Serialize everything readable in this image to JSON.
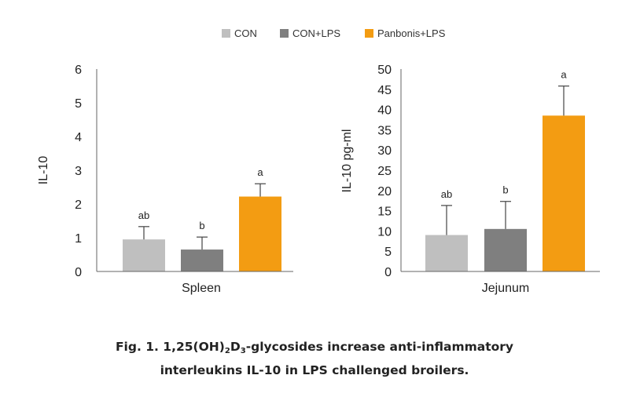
{
  "legend": [
    {
      "label": "CON",
      "color": "#bfbfbf"
    },
    {
      "label": "CON+LPS",
      "color": "#7f7f7f"
    },
    {
      "label": "Panbonis+LPS",
      "color": "#f39c12"
    }
  ],
  "chart_data": [
    {
      "type": "bar",
      "title": "",
      "xlabel": "Spleen",
      "ylabel": "IL-10",
      "ylim": [
        0,
        6
      ],
      "yticks": [
        "0",
        "1",
        "2",
        "3",
        "4",
        "5",
        "6"
      ],
      "categories": [
        "CON",
        "CON+LPS",
        "Panbonis+LPS"
      ],
      "values": [
        0.95,
        0.65,
        2.22
      ],
      "errors": [
        0.38,
        0.37,
        0.38
      ],
      "labels": [
        "ab",
        "b",
        "a"
      ]
    },
    {
      "type": "bar",
      "title": "",
      "xlabel": "Jejunum",
      "ylabel": "IL-10 pg-ml",
      "ylim": [
        0,
        50
      ],
      "yticks": [
        "0",
        "5",
        "10",
        "15",
        "20",
        "25",
        "30",
        "35",
        "40",
        "45",
        "50"
      ],
      "categories": [
        "CON",
        "CON+LPS",
        "Panbonis+LPS"
      ],
      "values": [
        9.0,
        10.5,
        38.5
      ],
      "errors": [
        7.3,
        6.8,
        7.3
      ],
      "labels": [
        "ab",
        "b",
        "a"
      ]
    }
  ],
  "caption": {
    "line1_prefix": "Fig. 1. 1,25(OH)",
    "sub1": "2",
    "mid": "D",
    "sub2": "3",
    "line1_suffix": "-glycosides increase anti-inflammatory",
    "line2": "interleukins IL-10 in LPS challenged broilers."
  }
}
